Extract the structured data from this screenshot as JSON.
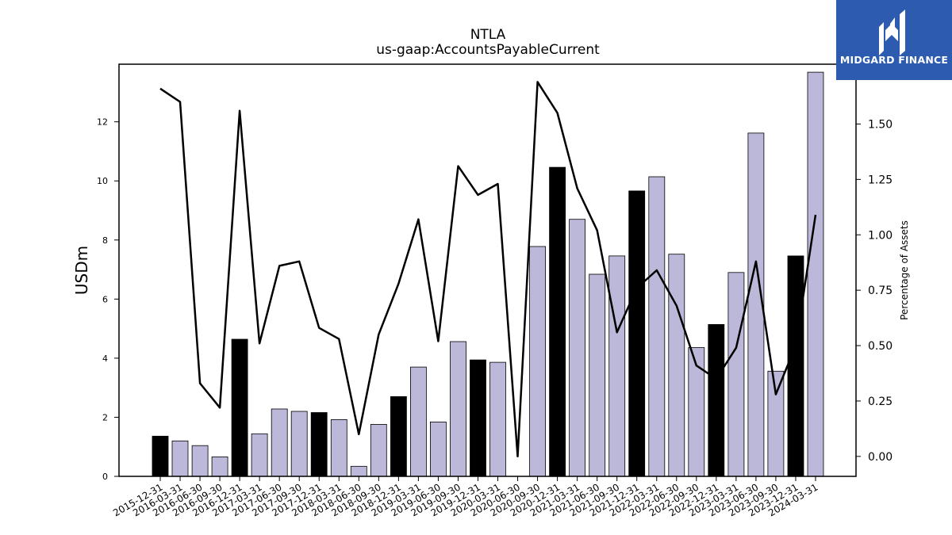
{
  "brand": {
    "name": "MIDGARD FINANCE",
    "color": "#2d5bb0"
  },
  "chart_data": {
    "type": "bar",
    "title": "NTLA",
    "subtitle": "us-gaap:AccountsPayableCurrent",
    "ylabel": "USDm",
    "y2label": "Percentage of Assets",
    "ylim": [
      0,
      13.95
    ],
    "y2lim": [
      -0.09,
      1.77
    ],
    "yticks": [
      0,
      2,
      4,
      6,
      8,
      10,
      12
    ],
    "y2ticks": [
      "0.00",
      "0.25",
      "0.50",
      "0.75",
      "1.00",
      "1.25",
      "1.50"
    ],
    "colors": {
      "q4": "#000000",
      "other": "#bcb8d9",
      "line": "#000000"
    },
    "categories": [
      "2015-12-31",
      "2016-03-31",
      "2016-06-30",
      "2016-09-30",
      "2016-12-31",
      "2017-03-31",
      "2017-06-30",
      "2017-09-30",
      "2017-12-31",
      "2018-03-31",
      "2018-06-30",
      "2018-09-30",
      "2018-12-31",
      "2019-03-31",
      "2019-06-30",
      "2019-09-30",
      "2019-12-31",
      "2020-03-31",
      "2020-06-30",
      "2020-09-30",
      "2020-12-31",
      "2021-03-31",
      "2021-06-30",
      "2021-09-30",
      "2021-12-31",
      "2022-03-31",
      "2022-06-30",
      "2022-09-30",
      "2022-12-31",
      "2023-03-31",
      "2023-06-30",
      "2023-09-30",
      "2023-12-31",
      "2024-03-31"
    ],
    "series": [
      {
        "type": "bar",
        "axis": "left",
        "values": [
          1.36,
          1.2,
          1.04,
          0.66,
          4.64,
          1.44,
          2.28,
          2.2,
          2.16,
          1.92,
          0.34,
          1.76,
          2.7,
          3.7,
          1.84,
          4.56,
          3.94,
          3.86,
          0,
          7.78,
          10.46,
          8.7,
          6.84,
          7.46,
          9.66,
          10.14,
          7.52,
          4.36,
          5.14,
          6.9,
          11.62,
          3.56,
          7.46,
          13.68
        ]
      },
      {
        "type": "line",
        "axis": "right",
        "values": [
          1.66,
          1.6,
          0.33,
          0.22,
          1.56,
          0.51,
          0.86,
          0.88,
          0.58,
          0.53,
          0.1,
          0.55,
          0.78,
          1.07,
          0.52,
          1.31,
          1.18,
          1.23,
          0.0,
          1.69,
          1.55,
          1.21,
          1.02,
          0.56,
          0.76,
          0.84,
          0.68,
          0.41,
          0.35,
          0.49,
          0.88,
          0.28,
          0.5,
          1.09
        ]
      }
    ]
  }
}
